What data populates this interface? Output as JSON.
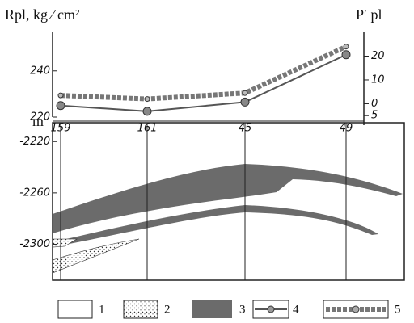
{
  "chart_data": [
    {
      "type": "line",
      "y_label": "Rpl, kg ⁄ cm²",
      "y2_label": "P′ pl",
      "categories": [
        "159",
        "161",
        "45",
        "49"
      ],
      "series": [
        {
          "name": "4",
          "color": "#555555",
          "values": [
            225,
            222.5,
            226.5,
            247
          ]
        },
        {
          "name": "5",
          "color": "#777777",
          "axis": "y2",
          "values": [
            3.5,
            2,
            4.5,
            24
          ]
        }
      ],
      "ylim": [
        220,
        256
      ],
      "yticks": [
        220,
        240
      ],
      "y2lim": [
        -9,
        30
      ],
      "y2ticks": [
        20,
        10,
        0,
        {
          "value": -5,
          "label": "5"
        }
      ]
    },
    {
      "type": "section",
      "y_label": "m",
      "ylim": [
        -2328,
        -2206
      ],
      "yticks": [
        -2220,
        -2260,
        -2300
      ],
      "legend": [
        "1",
        "2",
        "3"
      ]
    }
  ]
}
